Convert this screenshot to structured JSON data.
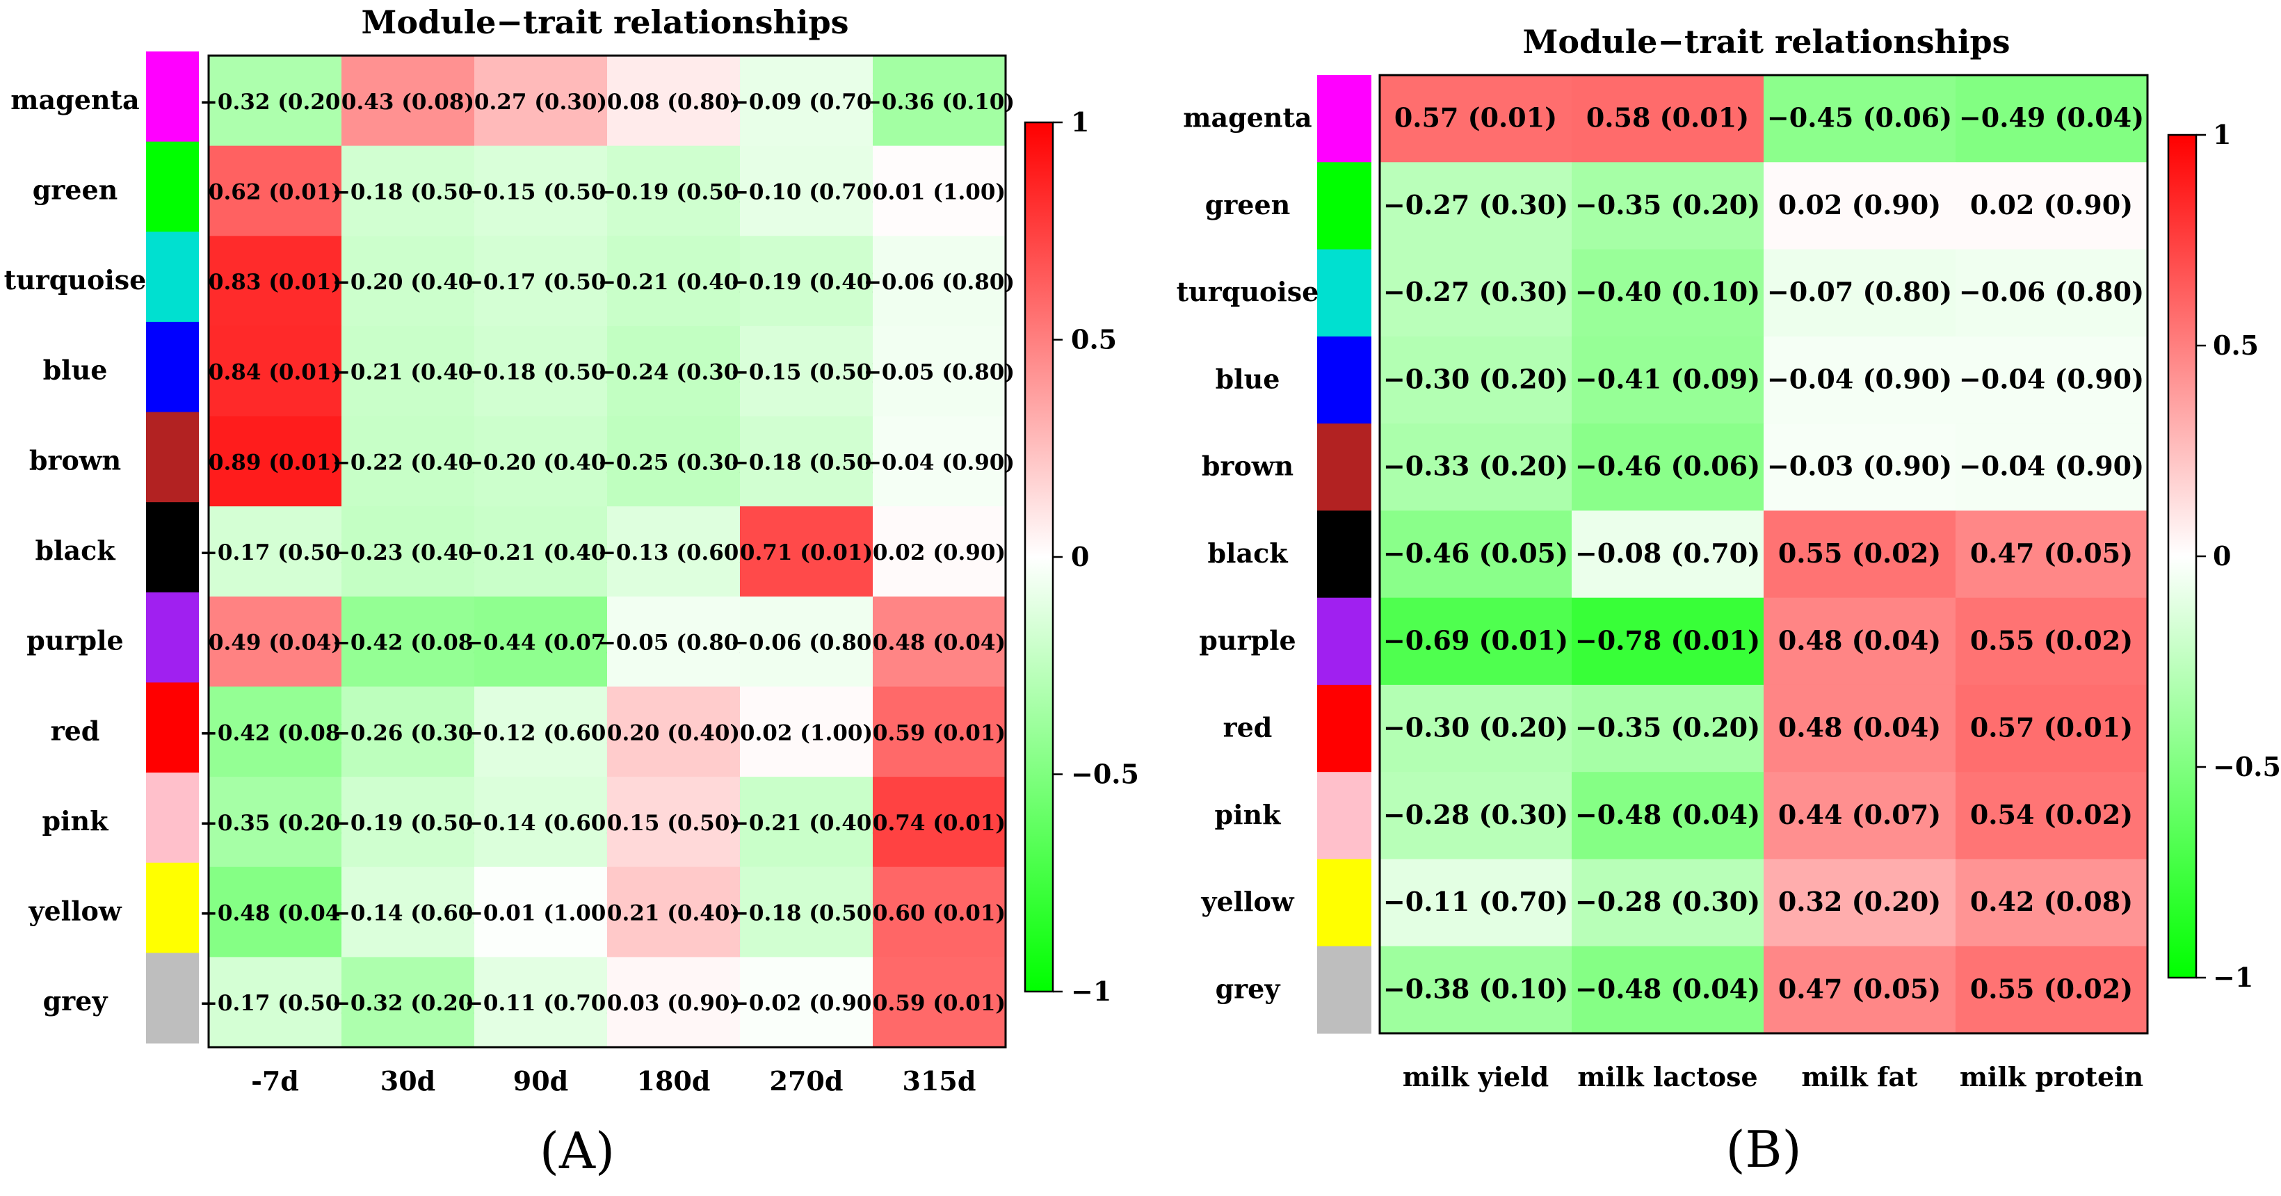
{
  "chart_data": [
    {
      "type": "heatmap",
      "title": "Module−trait relationships",
      "panel_label": "(A)",
      "rows": [
        "magenta",
        "green",
        "turquoise",
        "blue",
        "brown",
        "black",
        "purple",
        "red",
        "pink",
        "yellow",
        "grey"
      ],
      "row_colors": [
        "#ff00ff",
        "#00ff00",
        "#00e0d0",
        "#0000ff",
        "#b22222",
        "#000000",
        "#a020f0",
        "#ff0000",
        "#ffc0cb",
        "#ffff00",
        "#bebebe"
      ],
      "columns": [
        "-7d",
        "30d",
        "90d",
        "180d",
        "270d",
        "315d"
      ],
      "values": [
        [
          -0.32,
          0.43,
          0.27,
          0.08,
          -0.09,
          -0.36
        ],
        [
          0.62,
          -0.18,
          -0.15,
          -0.19,
          -0.1,
          0.01
        ],
        [
          0.83,
          -0.2,
          -0.17,
          -0.21,
          -0.19,
          -0.06
        ],
        [
          0.84,
          -0.21,
          -0.18,
          -0.24,
          -0.15,
          -0.05
        ],
        [
          0.89,
          -0.22,
          -0.2,
          -0.25,
          -0.18,
          -0.04
        ],
        [
          -0.17,
          -0.23,
          -0.21,
          -0.13,
          0.71,
          0.02
        ],
        [
          0.49,
          -0.42,
          -0.44,
          -0.05,
          -0.06,
          0.48
        ],
        [
          -0.42,
          -0.26,
          -0.12,
          0.2,
          0.02,
          0.59
        ],
        [
          -0.35,
          -0.19,
          -0.14,
          0.15,
          -0.21,
          0.74
        ],
        [
          -0.48,
          -0.14,
          -0.01,
          0.21,
          -0.18,
          0.6
        ],
        [
          -0.17,
          -0.32,
          -0.11,
          0.03,
          -0.02,
          0.59
        ]
      ],
      "labels": [
        [
          "−0.32 (0.20)",
          "0.43 (0.08)",
          "0.27 (0.30)",
          "0.08 (0.80)",
          "−0.09 (0.70)",
          "−0.36 (0.10)"
        ],
        [
          "0.62 (0.01)",
          "−0.18 (0.50)",
          "−0.15 (0.50)",
          "−0.19 (0.50)",
          "−0.10 (0.70)",
          "0.01 (1.00)"
        ],
        [
          "0.83 (0.01)",
          "−0.20 (0.40)",
          "−0.17 (0.50)",
          "−0.21 (0.40)",
          "−0.19 (0.40)",
          "−0.06 (0.80)"
        ],
        [
          "0.84 (0.01)",
          "−0.21 (0.40)",
          "−0.18 (0.50)",
          "−0.24 (0.30)",
          "−0.15 (0.50)",
          "−0.05 (0.80)"
        ],
        [
          "0.89 (0.01)",
          "−0.22 (0.40)",
          "−0.20 (0.40)",
          "−0.25 (0.30)",
          "−0.18 (0.50)",
          "−0.04 (0.90)"
        ],
        [
          "−0.17 (0.50)",
          "−0.23 (0.40)",
          "−0.21 (0.40)",
          "−0.13 (0.60)",
          "0.71 (0.01)",
          "0.02 (0.90)"
        ],
        [
          "0.49 (0.04)",
          "−0.42 (0.08)",
          "−0.44 (0.07)",
          "−0.05 (0.80)",
          "−0.06 (0.80)",
          "0.48 (0.04)"
        ],
        [
          "−0.42 (0.08)",
          "−0.26 (0.30)",
          "−0.12 (0.60)",
          "0.20 (0.40)",
          "0.02 (1.00)",
          "0.59 (0.01)"
        ],
        [
          "−0.35 (0.20)",
          "−0.19 (0.50)",
          "−0.14 (0.60)",
          "0.15 (0.50)",
          "−0.21 (0.40)",
          "0.74 (0.01)"
        ],
        [
          "−0.48 (0.04)",
          "−0.14 (0.60)",
          "−0.01 (1.00)",
          "0.21 (0.40)",
          "−0.18 (0.50)",
          "0.60 (0.01)"
        ],
        [
          "−0.17 (0.50)",
          "−0.32 (0.20)",
          "−0.11 (0.70)",
          "0.03 (0.90)",
          "−0.02 (0.90)",
          "0.59 (0.01)"
        ]
      ],
      "colorbar": {
        "range": [
          -1,
          1
        ],
        "ticks": [
          1,
          0.5,
          0,
          -0.5,
          -1
        ],
        "tick_labels": [
          "1",
          "0.5",
          "0",
          "−0.5",
          "−1"
        ],
        "low_color": "#00ff00",
        "mid_color": "#ffffff",
        "high_color": "#ff0000"
      }
    },
    {
      "type": "heatmap",
      "title": "Module−trait relationships",
      "panel_label": "(B)",
      "rows": [
        "magenta",
        "green",
        "turquoise",
        "blue",
        "brown",
        "black",
        "purple",
        "red",
        "pink",
        "yellow",
        "grey"
      ],
      "row_colors": [
        "#ff00ff",
        "#00ff00",
        "#00e0d0",
        "#0000ff",
        "#b22222",
        "#000000",
        "#a020f0",
        "#ff0000",
        "#ffc0cb",
        "#ffff00",
        "#bebebe"
      ],
      "columns": [
        "milk yield",
        "milk lactose",
        "milk fat",
        "milk protein"
      ],
      "values": [
        [
          0.57,
          0.58,
          -0.45,
          -0.49
        ],
        [
          -0.27,
          -0.35,
          0.02,
          0.02
        ],
        [
          -0.27,
          -0.4,
          -0.07,
          -0.06
        ],
        [
          -0.3,
          -0.41,
          -0.04,
          -0.04
        ],
        [
          -0.33,
          -0.46,
          -0.03,
          -0.04
        ],
        [
          -0.46,
          -0.08,
          0.55,
          0.47
        ],
        [
          -0.69,
          -0.78,
          0.48,
          0.55
        ],
        [
          -0.3,
          -0.35,
          0.48,
          0.57
        ],
        [
          -0.28,
          -0.48,
          0.44,
          0.54
        ],
        [
          -0.11,
          -0.28,
          0.32,
          0.42
        ],
        [
          -0.38,
          -0.48,
          0.47,
          0.55
        ]
      ],
      "labels": [
        [
          "0.57 (0.01)",
          "0.58 (0.01)",
          "−0.45 (0.06)",
          "−0.49 (0.04)"
        ],
        [
          "−0.27 (0.30)",
          "−0.35 (0.20)",
          "0.02 (0.90)",
          "0.02 (0.90)"
        ],
        [
          "−0.27 (0.30)",
          "−0.40 (0.10)",
          "−0.07 (0.80)",
          "−0.06 (0.80)"
        ],
        [
          "−0.30 (0.20)",
          "−0.41 (0.09)",
          "−0.04 (0.90)",
          "−0.04 (0.90)"
        ],
        [
          "−0.33 (0.20)",
          "−0.46 (0.06)",
          "−0.03 (0.90)",
          "−0.04 (0.90)"
        ],
        [
          "−0.46 (0.05)",
          "−0.08 (0.70)",
          "0.55 (0.02)",
          "0.47 (0.05)"
        ],
        [
          "−0.69 (0.01)",
          "−0.78 (0.01)",
          "0.48 (0.04)",
          "0.55 (0.02)"
        ],
        [
          "−0.30 (0.20)",
          "−0.35 (0.20)",
          "0.48 (0.04)",
          "0.57 (0.01)"
        ],
        [
          "−0.28 (0.30)",
          "−0.48 (0.04)",
          "0.44 (0.07)",
          "0.54 (0.02)"
        ],
        [
          "−0.11 (0.70)",
          "−0.28 (0.30)",
          "0.32 (0.20)",
          "0.42 (0.08)"
        ],
        [
          "−0.38 (0.10)",
          "−0.48 (0.04)",
          "0.47 (0.05)",
          "0.55 (0.02)"
        ]
      ],
      "colorbar": {
        "range": [
          -1,
          1
        ],
        "ticks": [
          1,
          0.5,
          0,
          -0.5,
          -1
        ],
        "tick_labels": [
          "1",
          "0.5",
          "0",
          "−0.5",
          "−1"
        ],
        "low_color": "#00ff00",
        "mid_color": "#ffffff",
        "high_color": "#ff0000"
      }
    }
  ]
}
